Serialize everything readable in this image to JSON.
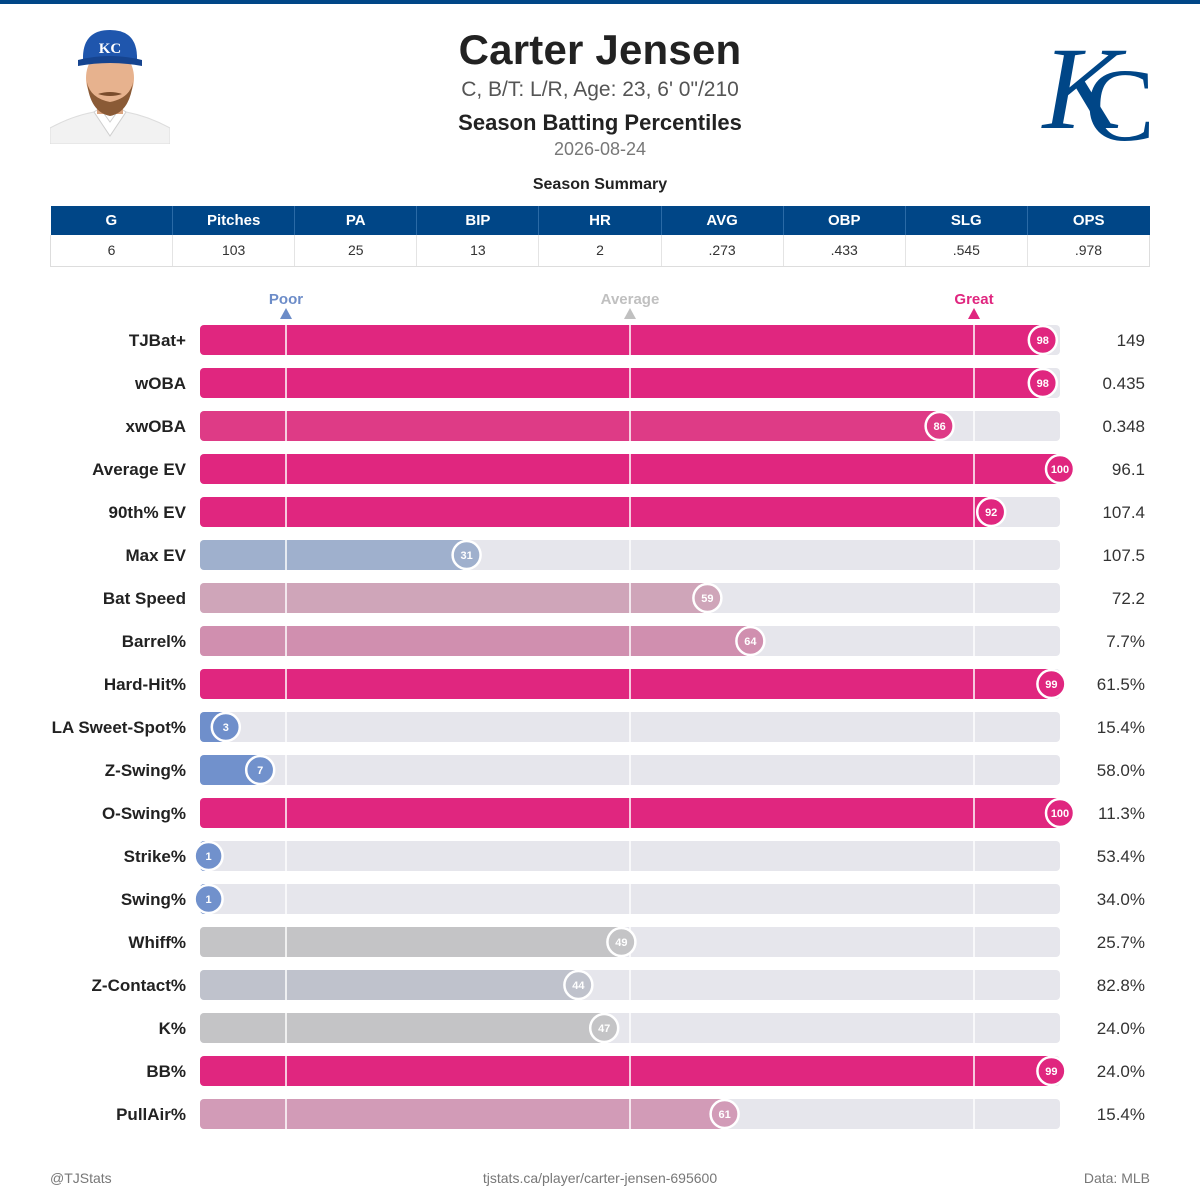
{
  "header": {
    "name": "Carter Jensen",
    "bio": "C, B/T: L/R, Age: 23, 6' 0\"/210",
    "subtitle": "Season Batting Percentiles",
    "date": "2026-08-24"
  },
  "summary": {
    "title": "Season Summary",
    "columns": [
      "G",
      "Pitches",
      "PA",
      "BIP",
      "HR",
      "AVG",
      "OBP",
      "SLG",
      "OPS"
    ],
    "values": [
      "6",
      "103",
      "25",
      "13",
      "2",
      ".273",
      ".433",
      ".545",
      ".978"
    ]
  },
  "chart_data": {
    "type": "bar",
    "orientation": "horizontal",
    "xlim": [
      0,
      100
    ],
    "reference_lines": [
      {
        "label": "Poor",
        "x": 10,
        "color": "#6c8cc8"
      },
      {
        "label": "Average",
        "x": 50,
        "color": "#c0c0c0"
      },
      {
        "label": "Great",
        "x": 90,
        "color": "#e0267f"
      }
    ],
    "categories": [
      "TJBat+",
      "wOBA",
      "xwOBA",
      "Average EV",
      "90th% EV",
      "Max EV",
      "Bat Speed",
      "Barrel%",
      "Hard-Hit%",
      "LA Sweet-Spot%",
      "Z-Swing%",
      "O-Swing%",
      "Strike%",
      "Swing%",
      "Whiff%",
      "Z-Contact%",
      "K%",
      "BB%",
      "PullAir%"
    ],
    "percentiles": [
      98,
      98,
      86,
      100,
      92,
      31,
      59,
      64,
      99,
      3,
      7,
      100,
      1,
      1,
      49,
      44,
      47,
      99,
      61
    ],
    "values": [
      "149",
      "0.435",
      "0.348",
      "96.1",
      "107.4",
      "107.5",
      "72.2",
      "7.7%",
      "61.5%",
      "15.4%",
      "58.0%",
      "11.3%",
      "53.4%",
      "34.0%",
      "25.7%",
      "82.8%",
      "24.0%",
      "24.0%",
      "15.4%"
    ],
    "colors": [
      "#e0267f",
      "#e0267f",
      "#de3b86",
      "#e0267f",
      "#e0267f",
      "#9fb0cd",
      "#cfa5b9",
      "#d08faf",
      "#e0267f",
      "#6f8fcb",
      "#7191cc",
      "#e0267f",
      "#7191cc",
      "#7191cc",
      "#c4c4c6",
      "#bfc2cc",
      "#c4c4c6",
      "#e0267f",
      "#d29bb7"
    ],
    "track_color": "#e6e6ec"
  },
  "footer": {
    "left": "@TJStats",
    "center": "tjstats.ca/player/carter-jensen-695600",
    "right": "Data: MLB"
  }
}
